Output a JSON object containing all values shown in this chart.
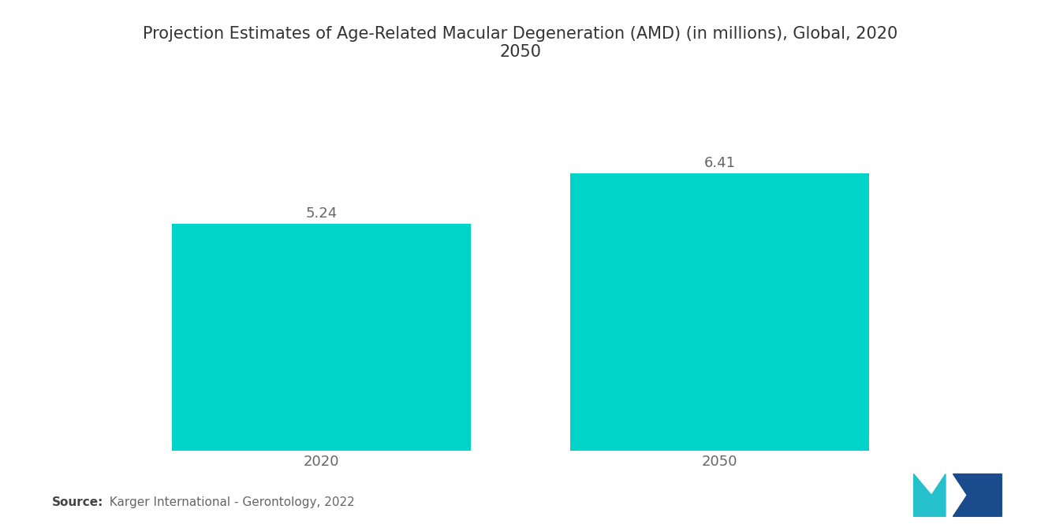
{
  "title": "Projection Estimates of Age-Related Macular Degeneration (AMD) (in millions), Global, 2020\n2050",
  "categories": [
    "2020",
    "2050"
  ],
  "values": [
    5.24,
    6.41
  ],
  "bar_color": "#00D4C8",
  "value_labels": [
    "5.24",
    "6.41"
  ],
  "source_bold": "Source:",
  "source_text": "  Karger International - Gerontology, 2022",
  "background_color": "#ffffff",
  "title_fontsize": 15,
  "label_fontsize": 13,
  "tick_fontsize": 13,
  "source_fontsize": 11,
  "ylim": [
    0,
    8
  ],
  "bar_width": 0.75,
  "logo_left_color": "#26C0CC",
  "logo_right_color": "#1A4B8C"
}
